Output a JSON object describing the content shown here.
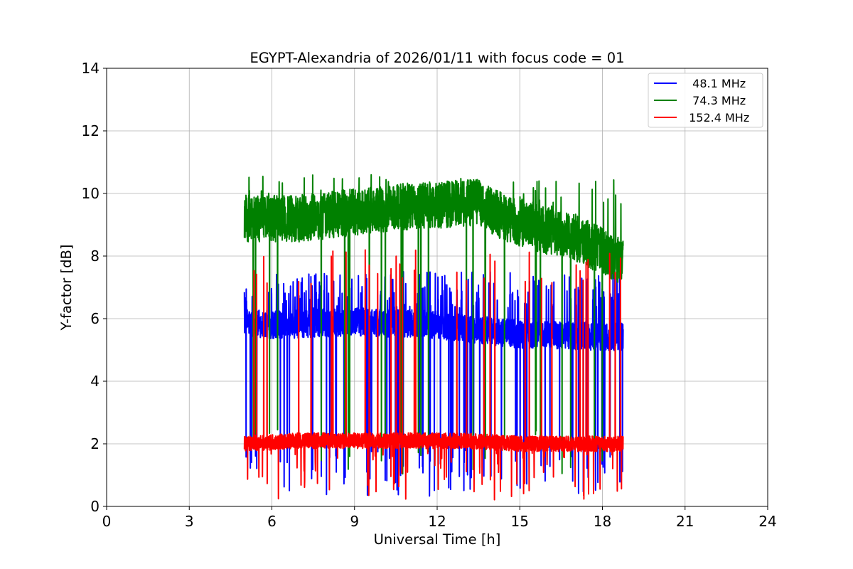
{
  "chart_data": {
    "type": "line",
    "title": "EGYPT-Alexandria of 2026/01/11 with focus code = 01",
    "xlabel": "Universal Time [h]",
    "ylabel": "Y-factor [dB]",
    "xlim": [
      0,
      24
    ],
    "ylim": [
      0,
      14
    ],
    "xticks": [
      0,
      3,
      6,
      9,
      12,
      15,
      18,
      21,
      24
    ],
    "yticks": [
      0,
      2,
      4,
      6,
      8,
      10,
      12,
      14
    ],
    "grid": true,
    "legend_position": "top-right",
    "data_range_hours": [
      5.0,
      18.75
    ],
    "series": [
      {
        "name": "  48.1 MHz",
        "color": "#0000ff",
        "baseline": [
          [
            5.0,
            5.9
          ],
          [
            6.0,
            5.8
          ],
          [
            9.0,
            5.9
          ],
          [
            12.0,
            5.8
          ],
          [
            15.0,
            5.5
          ],
          [
            18.75,
            5.4
          ]
        ],
        "noise": 0.45,
        "spike_up": 7.5,
        "spike_up_rate": 0.08,
        "spike_down": 0.3,
        "spike_down_rate": 0.03
      },
      {
        "name": "  74.3 MHz",
        "color": "#008000",
        "baseline": [
          [
            5.0,
            9.2
          ],
          [
            7.0,
            9.2
          ],
          [
            9.0,
            9.4
          ],
          [
            11.0,
            9.6
          ],
          [
            13.5,
            9.7
          ],
          [
            14.5,
            9.2
          ],
          [
            16.0,
            8.8
          ],
          [
            17.0,
            8.6
          ],
          [
            18.75,
            7.8
          ]
        ],
        "noise": 0.75,
        "spike_up": 10.6,
        "spike_up_rate": 0.03,
        "spike_down": 1.0,
        "spike_down_rate": 0.012
      },
      {
        "name": " 152.4 MHz",
        "color": "#ff0000",
        "baseline": [
          [
            5.0,
            2.0
          ],
          [
            7.0,
            2.1
          ],
          [
            10.0,
            2.1
          ],
          [
            13.0,
            2.1
          ],
          [
            15.0,
            2.0
          ],
          [
            18.75,
            2.0
          ]
        ],
        "noise": 0.25,
        "spike_up": 8.3,
        "spike_up_rate": 0.018,
        "spike_down": 0.2,
        "spike_down_rate": 0.03
      }
    ]
  }
}
